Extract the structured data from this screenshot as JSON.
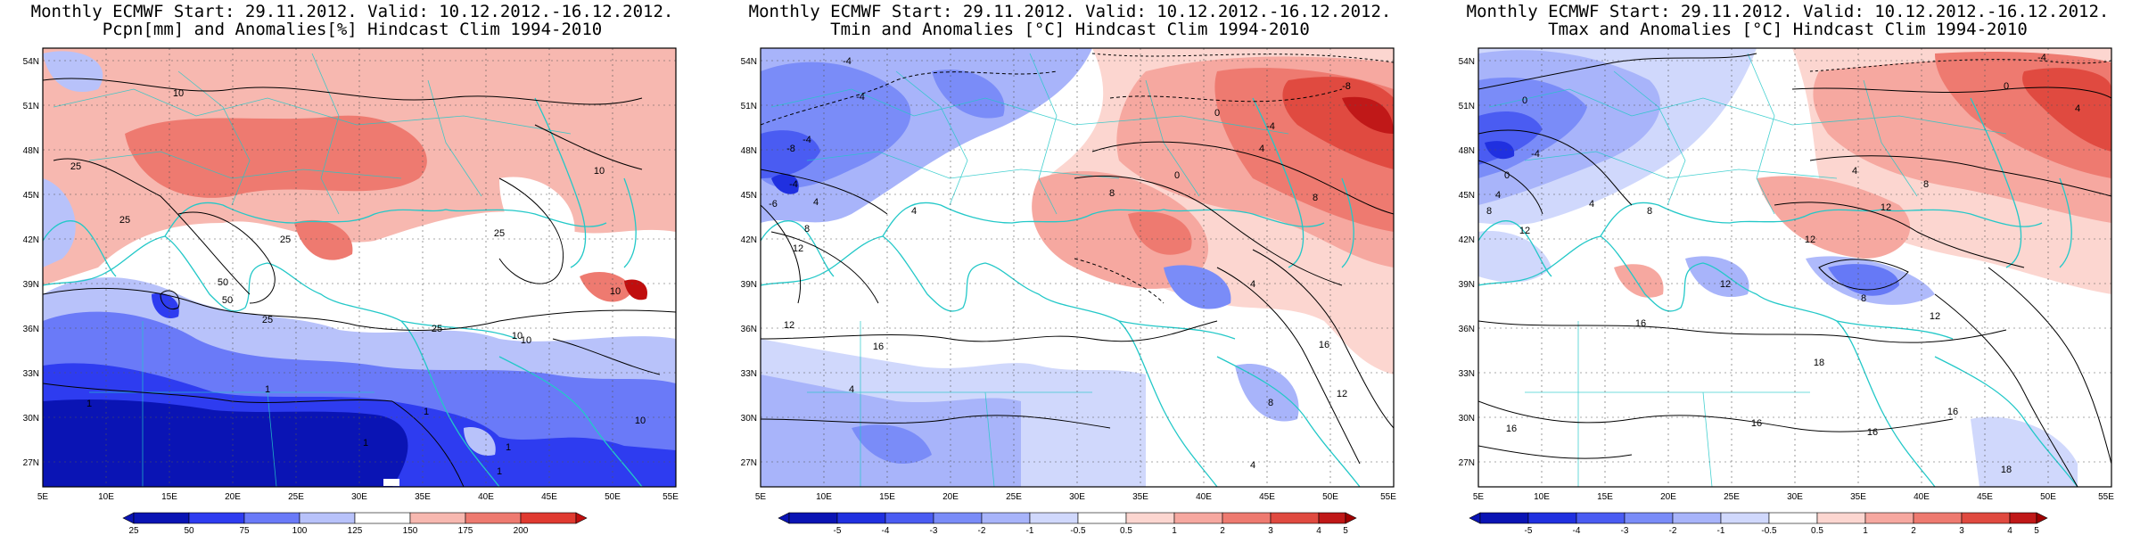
{
  "panels": [
    {
      "title1": "Monthly ECMWF Start: 29.11.2012. Valid: 10.12.2012.-16.12.2012.",
      "title2": "Pcpn[mm] and Anomalies[%] Hindcast Clim 1994-2010",
      "lat_labels": [
        "54N",
        "51N",
        "48N",
        "45N",
        "42N",
        "39N",
        "36N",
        "33N",
        "30N",
        "27N"
      ],
      "lon_labels": [
        "5E",
        "10E",
        "15E",
        "20E",
        "25E",
        "30E",
        "35E",
        "40E",
        "45E",
        "50E",
        "55E"
      ],
      "contour_labels": [
        "10",
        "25",
        "25",
        "25",
        "50",
        "25",
        "25",
        "10",
        "10",
        "10",
        "10",
        "25",
        "1",
        "1",
        "1",
        "1",
        "1",
        "1",
        "10",
        "50"
      ],
      "colorbar_labels": [
        "25",
        "50",
        "75",
        "100",
        "125",
        "150",
        "175",
        "200"
      ],
      "colors": [
        "#0a14b4",
        "#2e3cf0",
        "#6a7af8",
        "#b8c2fa",
        "#ffffff",
        "#f7b8b0",
        "#ee7a70",
        "#e03a30",
        "#c00e0e"
      ]
    },
    {
      "title1": "Monthly ECMWF Start: 29.11.2012. Valid: 10.12.2012.-16.12.2012.",
      "title2": "Tmin and Anomalies [°C] Hindcast Clim 1994-2010",
      "lat_labels": [
        "54N",
        "51N",
        "48N",
        "45N",
        "42N",
        "39N",
        "36N",
        "33N",
        "30N",
        "27N"
      ],
      "lon_labels": [
        "5E",
        "10E",
        "15E",
        "20E",
        "25E",
        "30E",
        "35E",
        "40E",
        "45E",
        "50E",
        "55E"
      ],
      "contour_labels": [
        "-4",
        "-4",
        "-4",
        "-8",
        "-4",
        "-6",
        "4",
        "8",
        "12",
        "4",
        "8",
        "0",
        "12",
        "4",
        "16",
        "4",
        "8",
        "12",
        "16",
        "4",
        "8",
        "4",
        "-4",
        "-8",
        "0"
      ],
      "colorbar_labels": [
        "-5",
        "-4",
        "-3",
        "-2",
        "-1",
        "-0.5",
        "0.5",
        "1",
        "2",
        "3",
        "4",
        "5"
      ],
      "colors": [
        "#0a14b4",
        "#2030e0",
        "#4a5cf2",
        "#7a8cf8",
        "#a8b4fa",
        "#d0d8fc",
        "#ffffff",
        "#fcd6d0",
        "#f6a8a0",
        "#ee7a70",
        "#e04a40",
        "#c01818",
        "#a00000"
      ]
    },
    {
      "title1": "Monthly ECMWF Start: 29.11.2012. Valid: 10.12.2012.-16.12.2012.",
      "title2": "Tmax and Anomalies [°C] Hindcast Clim 1994-2010",
      "lat_labels": [
        "54N",
        "51N",
        "48N",
        "45N",
        "42N",
        "39N",
        "36N",
        "33N",
        "30N",
        "27N"
      ],
      "lon_labels": [
        "5E",
        "10E",
        "15E",
        "20E",
        "25E",
        "30E",
        "35E",
        "40E",
        "45E",
        "50E",
        "55E"
      ],
      "contour_labels": [
        "0",
        "-4",
        "0",
        "4",
        "8",
        "12",
        "4",
        "8",
        "12",
        "16",
        "12",
        "16",
        "8",
        "12",
        "16",
        "18",
        "16",
        "16",
        "18",
        "4",
        "0",
        "-4",
        "12",
        "8",
        "4"
      ],
      "colorbar_labels": [
        "-5",
        "-4",
        "-3",
        "-2",
        "-1",
        "-0.5",
        "0.5",
        "1",
        "2",
        "3",
        "4",
        "5"
      ],
      "colors": [
        "#0a14b4",
        "#2030e0",
        "#4a5cf2",
        "#7a8cf8",
        "#a8b4fa",
        "#d0d8fc",
        "#ffffff",
        "#fcd6d0",
        "#f6a8a0",
        "#ee7a70",
        "#e04a40",
        "#c01818",
        "#a00000"
      ]
    }
  ]
}
